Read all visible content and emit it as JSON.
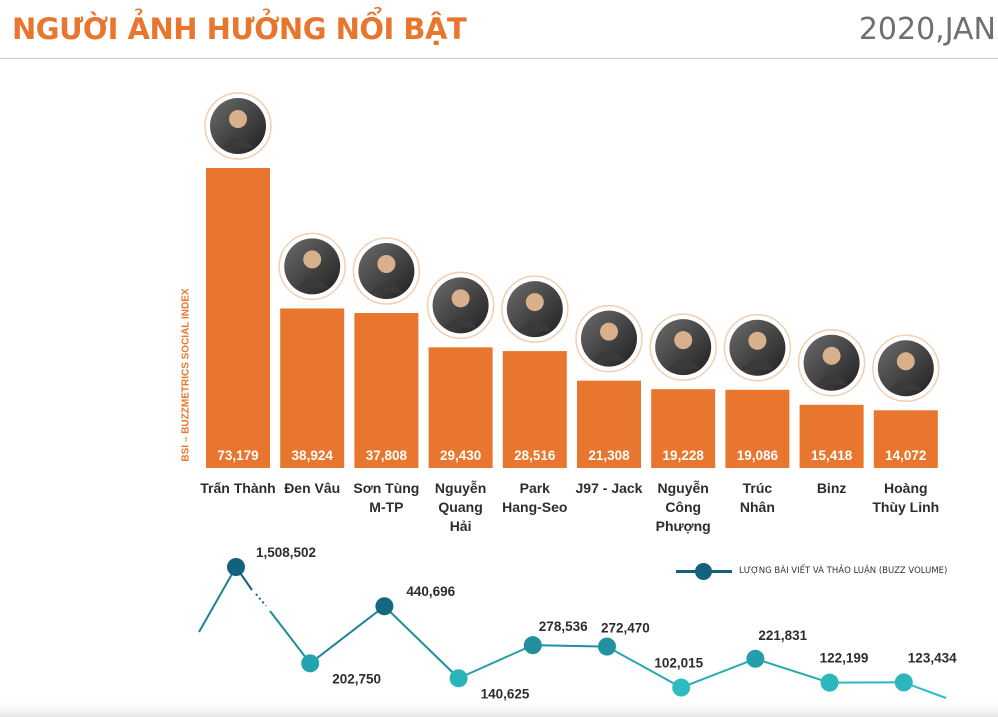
{
  "header": {
    "title": "NGƯỜI ẢNH HƯỞNG NỔI BẬT",
    "date": "2020,JAN"
  },
  "colors": {
    "accent": "#e8762e",
    "line_dark": "#13617a",
    "line_light": "#2dbfc3",
    "text": "#2d2d2d"
  },
  "chart_data": [
    {
      "type": "bar",
      "ylabel": "BSI – BUZZMETRICS SOCIAL INDEX",
      "categories": [
        [
          "Trấn Thành"
        ],
        [
          "Đen Vâu"
        ],
        [
          "Sơn Tùng",
          "M-TP"
        ],
        [
          "Nguyễn",
          "Quang",
          "Hải"
        ],
        [
          "Park",
          "Hang-Seo"
        ],
        [
          "J97 - Jack"
        ],
        [
          "Nguyễn",
          "Công",
          "Phượng"
        ],
        [
          "Trúc",
          "Nhân"
        ],
        [
          "Binz"
        ],
        [
          "Hoàng",
          "Thùy Linh"
        ]
      ],
      "values": [
        73179,
        38924,
        37808,
        29430,
        28516,
        21308,
        19228,
        19086,
        15418,
        14072
      ],
      "value_labels": [
        "73,179",
        "38,924",
        "37,808",
        "29,430",
        "28,516",
        "21,308",
        "19,228",
        "19,086",
        "15,418",
        "14,072"
      ],
      "has_avatar": true,
      "grid": false
    },
    {
      "type": "line",
      "series": [
        {
          "name": "LƯỢNG BÀI VIẾT VÀ THẢO LUẬN (BUZZ VOLUME)",
          "values": [
            1508502,
            202750,
            440696,
            140625,
            278536,
            272470,
            102015,
            221831,
            122199,
            123434
          ],
          "value_labels": [
            "1,508,502",
            "202,750",
            "440,696",
            "140,625",
            "278,536",
            "272,470",
            "102,015",
            "221,831",
            "122,199",
            "123,434"
          ]
        }
      ],
      "axis_break": true,
      "grid": false
    }
  ]
}
